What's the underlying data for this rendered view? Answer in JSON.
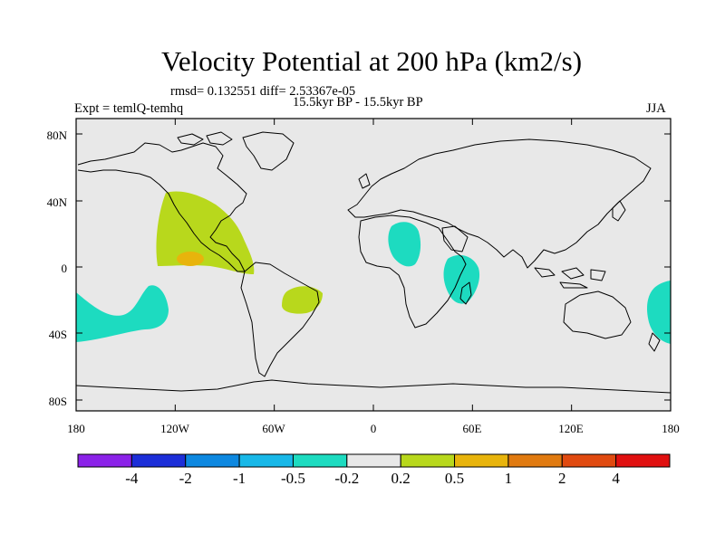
{
  "title": "Velocity Potential at 200 hPa (km2/s)",
  "stats_text": "rmsd= 0.132551 diff= 2.53367e-05",
  "period_text": "15.5kyr BP - 15.5kyr BP",
  "experiment_text": "Expt = temlQ-temhq",
  "season": "JJA",
  "lat_ticks": [
    "80N",
    "40N",
    "0",
    "40S",
    "80S"
  ],
  "lon_ticks": [
    "180",
    "120W",
    "60W",
    "0",
    "60E",
    "120E",
    "180"
  ],
  "colorbar": {
    "colors": [
      "#8b22e8",
      "#1c2ed8",
      "#0d88e0",
      "#18b8e8",
      "#1ddbc0",
      "#e8e8e8",
      "#b8d81c",
      "#e8b40c",
      "#e07a10",
      "#e04a10",
      "#e01010"
    ],
    "labels": [
      "-4",
      "-2",
      "-1",
      "-0.5",
      "-0.2",
      "0.2",
      "0.5",
      "1",
      "2",
      "4"
    ]
  },
  "map": {
    "background": "#e8e8e8",
    "positive_fill": "#b8d81c",
    "positive_strong_fill": "#e8b40c",
    "negative_fill": "#1ddbc0"
  }
}
